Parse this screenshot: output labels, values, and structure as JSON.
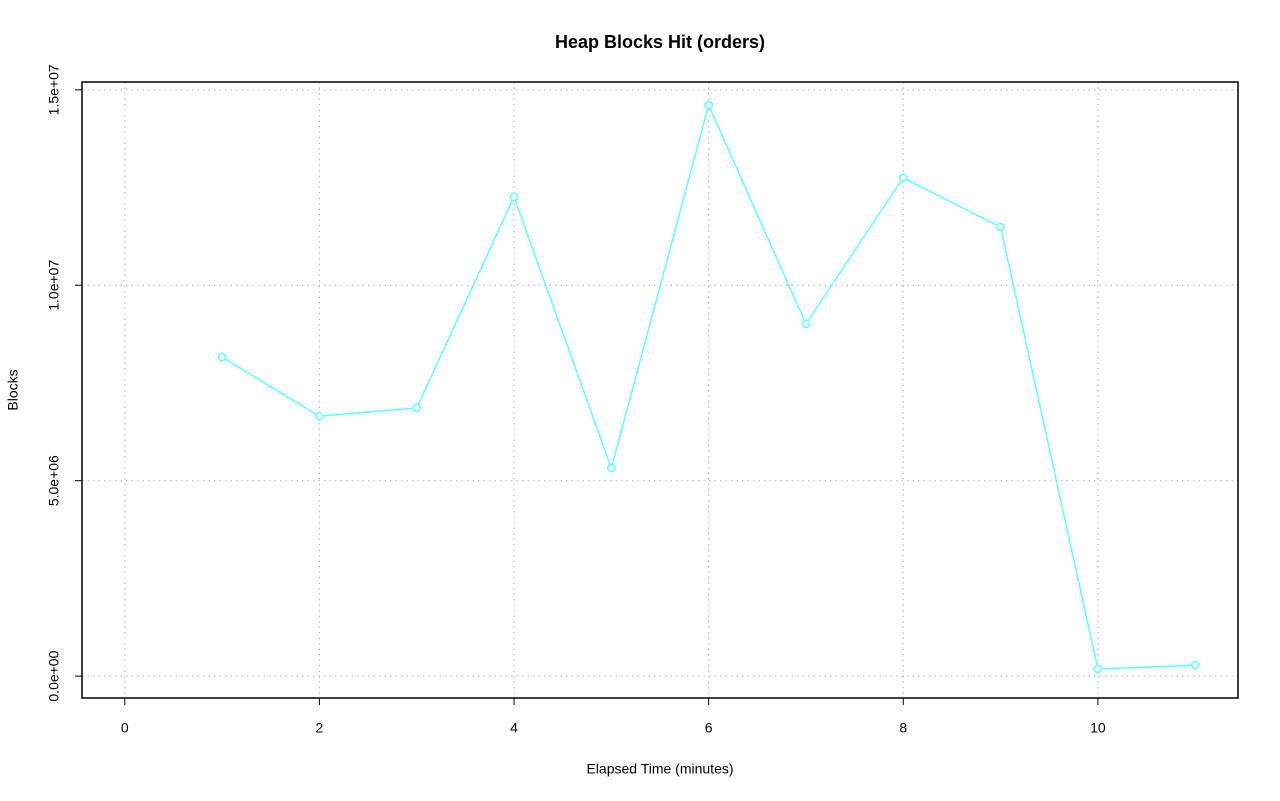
{
  "chart_data": {
    "type": "line",
    "title": "Heap Blocks Hit (orders)",
    "x_label": "Elapsed Time (minutes)",
    "y_label": "Blocks",
    "x": [
      1,
      2,
      3,
      4,
      5,
      6,
      7,
      8,
      9,
      10,
      11
    ],
    "series": [
      {
        "color": "#66ffff",
        "values": [
          8160000,
          6650000,
          6860000,
          12260000,
          5320000,
          14610000,
          9010000,
          12750000,
          11490000,
          180000,
          280000
        ]
      }
    ],
    "xlim": [
      -0.44,
      11.44
    ],
    "xticks": [
      0,
      2,
      4,
      6,
      8,
      10
    ],
    "ylim": [
      -560000,
      15200000
    ],
    "yticks": [
      {
        "value": 0,
        "label": "0.0e+00"
      },
      {
        "value": 5000000,
        "label": "5.0e+06"
      },
      {
        "value": 10000000,
        "label": "1.0e+07"
      },
      {
        "value": 15000000,
        "label": "1.5e+07"
      }
    ],
    "grid": true
  }
}
